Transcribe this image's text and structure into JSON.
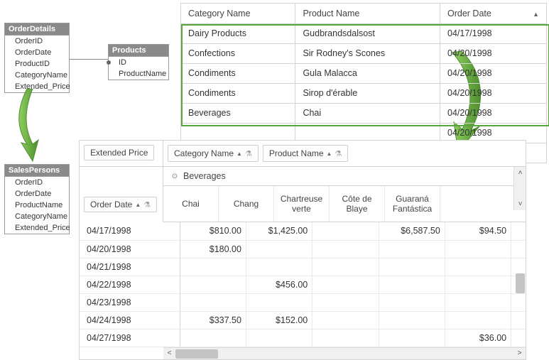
{
  "schema": {
    "orderDetails": {
      "title": "OrderDetails",
      "fields": [
        "OrderID",
        "OrderDate",
        "ProductID",
        "CategoryName",
        "Extended_Price"
      ]
    },
    "products": {
      "title": "Products",
      "fields": [
        "ID",
        "ProductName"
      ]
    },
    "salesPersons": {
      "title": "SalesPersons",
      "fields": [
        "OrderID",
        "OrderDate",
        "ProductName",
        "CategoryName",
        "Extended_Price"
      ]
    }
  },
  "grid": {
    "columns": {
      "category": "Category Name",
      "product": "Product Name",
      "orderDate": "Order Date"
    },
    "rows": [
      {
        "category": "Dairy Products",
        "product": "Gudbrandsdalsost",
        "orderDate": "04/17/1998"
      },
      {
        "category": "Confections",
        "product": "Sir Rodney's Scones",
        "orderDate": "04/20/1998"
      },
      {
        "category": "Condiments",
        "product": "Gula Malacca",
        "orderDate": "04/20/1998"
      },
      {
        "category": "Condiments",
        "product": "Sirop d'érable",
        "orderDate": "04/20/1998"
      },
      {
        "category": "Beverages",
        "product": "Chai",
        "orderDate": "04/20/1998"
      },
      {
        "category": "",
        "product": "",
        "orderDate": "04/20/1998"
      },
      {
        "category": "",
        "product": "",
        "orderDate": "04/20/1998"
      }
    ],
    "highlightStart": 0,
    "highlightCount": 5,
    "highlightColor": "#58a63c"
  },
  "pivot": {
    "dataField": "Extended Price",
    "columnFields": [
      "Category Name",
      "Product Name"
    ],
    "rowFields": [
      "Order Date"
    ],
    "columnGroupLabel": "Beverages",
    "columnHeaders": [
      "Chai",
      "Chang",
      "Chartreuse verte",
      "Côte de Blaye",
      "Guaraná Fantástica"
    ],
    "rows": [
      {
        "label": "04/17/1998",
        "cells": [
          "$810.00",
          "$1,425.00",
          "",
          "$6,587.50",
          "$94.50"
        ]
      },
      {
        "label": "04/20/1998",
        "cells": [
          "$180.00",
          "",
          "",
          "",
          ""
        ]
      },
      {
        "label": "04/21/1998",
        "cells": [
          "",
          "",
          "",
          "",
          ""
        ]
      },
      {
        "label": "04/22/1998",
        "cells": [
          "",
          "$456.00",
          "",
          "",
          ""
        ]
      },
      {
        "label": "04/23/1998",
        "cells": [
          "",
          "",
          "",
          "",
          ""
        ]
      },
      {
        "label": "04/24/1998",
        "cells": [
          "$337.50",
          "$152.00",
          "",
          "",
          ""
        ]
      },
      {
        "label": "04/27/1998",
        "cells": [
          "",
          "",
          "",
          "",
          "$36.00"
        ]
      }
    ]
  },
  "colors": {
    "border": "#d3d3d3",
    "schemaHeader": "#8a8a8a",
    "text": "#333333",
    "arrowFill": "#6fb24b",
    "arrowStroke": "#4e8e2f",
    "scrollbar": "#f0f0f0",
    "scrollThumb": "#c4c4c4"
  }
}
